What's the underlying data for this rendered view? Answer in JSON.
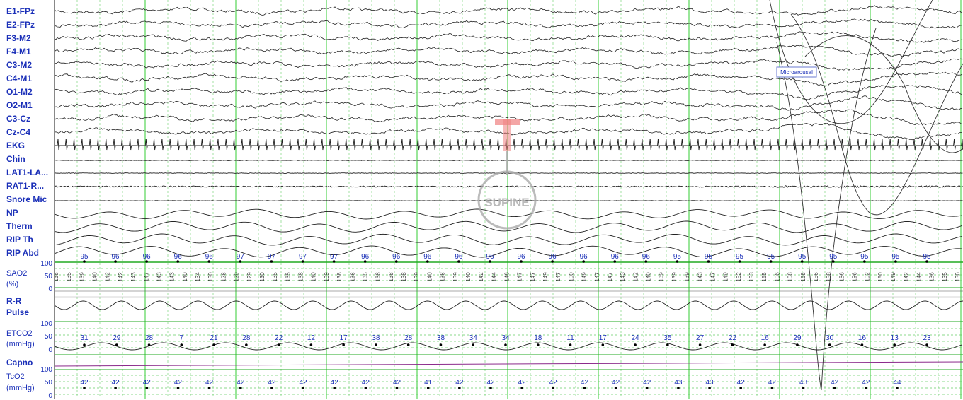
{
  "eeg_labels": [
    "E1-FPz",
    "E2-FPz",
    "F3-M2",
    "F4-M1",
    "C3-M2",
    "C4-M1",
    "O1-M2",
    "O2-M1",
    "C3-Cz",
    "Cz-C4",
    "EKG",
    "Chin",
    "LAT1-LA...",
    "RAT1-R...",
    "Snore Mic",
    "NP",
    "Therm",
    "RIP Th",
    "RIP Abd"
  ],
  "sao2": {
    "label_line1": "SAO2",
    "label_line2": "(%)",
    "ticks": [
      "100",
      "50",
      "0"
    ],
    "values": [
      "95",
      "96",
      "96",
      "96",
      "96",
      "97",
      "97",
      "97",
      "97",
      "96",
      "96",
      "96",
      "96",
      "96",
      "96",
      "96",
      "96",
      "96",
      "96",
      "95",
      "95",
      "95",
      "95",
      "95",
      "95",
      "95",
      "95",
      "95"
    ]
  },
  "pulse_values": [
    "138",
    "135",
    "139",
    "140",
    "142",
    "142",
    "143",
    "147",
    "143",
    "143",
    "140",
    "134",
    "130",
    "128",
    "129",
    "129",
    "130",
    "135",
    "135",
    "138",
    "140",
    "139",
    "138",
    "138",
    "135",
    "138",
    "138",
    "138",
    "139",
    "140",
    "138",
    "139",
    "140",
    "142",
    "144",
    "146",
    "147",
    "147",
    "149",
    "147",
    "150",
    "149",
    "147",
    "147",
    "143",
    "142",
    "140",
    "139",
    "139",
    "139",
    "143",
    "147",
    "149",
    "152",
    "153",
    "155",
    "156",
    "158",
    "158",
    "156",
    "158",
    "156",
    "156",
    "152",
    "150",
    "149",
    "142",
    "144",
    "136",
    "135",
    "136"
  ],
  "rr": {
    "label_line1": "R-R",
    "label_line2": "Pulse"
  },
  "etco2": {
    "label_line1": "ETCO2",
    "label_line2": "(mmHg)",
    "ticks": [
      "100",
      "50",
      "0"
    ],
    "values": [
      "31",
      "29",
      "28",
      "7",
      "21",
      "28",
      "22",
      "12",
      "17",
      "38",
      "28",
      "38",
      "34",
      "34",
      "18",
      "11",
      "17",
      "24",
      "35",
      "27",
      "22",
      "16",
      "29",
      "30",
      "16",
      "13",
      "23"
    ]
  },
  "capno_label": "Capno",
  "tco2": {
    "label_line1": "TcO2",
    "label_line2": "(mmHg)",
    "ticks": [
      "100",
      "50",
      "0"
    ],
    "values": [
      "42",
      "42",
      "42",
      "42",
      "42",
      "42",
      "42",
      "42",
      "42",
      "42",
      "42",
      "41",
      "42",
      "42",
      "42",
      "42",
      "42",
      "42",
      "42",
      "43",
      "43",
      "42",
      "42",
      "43",
      "42",
      "42",
      "44"
    ]
  },
  "annotation": "Microarousal",
  "position_text": "SUPINE",
  "colors": {
    "label": "#1a2fb8",
    "trace": "#222222",
    "grid_major": "#33cc33",
    "grid_minor": "#66cc66",
    "capno": "#8b2a8b",
    "position": "#f08080"
  }
}
